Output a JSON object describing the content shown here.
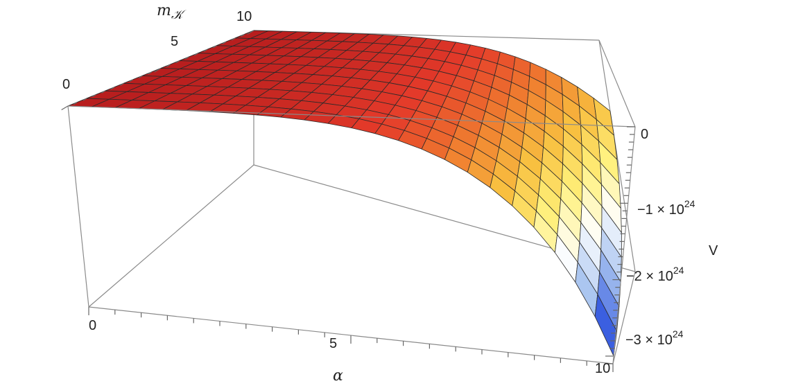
{
  "chart_data": {
    "type": "surface3d",
    "title": "",
    "xlabel": "α",
    "ylabel_main": "m",
    "ylabel_sub": "𝒦",
    "zlabel": "V",
    "xlim": [
      0,
      10
    ],
    "ylim": [
      0,
      10
    ],
    "zlim": [
      -3.1e+24,
      0
    ],
    "grid_resolution": {
      "x_lines": 24,
      "y_lines": 10
    },
    "x_ticks": [
      {
        "value": 0,
        "label": "0"
      },
      {
        "value": 5,
        "label": "5"
      },
      {
        "value": 10,
        "label": "10"
      }
    ],
    "y_ticks": [
      {
        "value": 0,
        "label": "0"
      },
      {
        "value": 5,
        "label": "5"
      },
      {
        "value": 10,
        "label": "10"
      }
    ],
    "z_ticks": [
      {
        "value": 0,
        "label": "0",
        "mant": "",
        "exp": ""
      },
      {
        "value": -1e+24,
        "label": "−1 × 10^24",
        "mant": "−1 × 10",
        "exp": "24"
      },
      {
        "value": -2e+24,
        "label": "−2 × 10^24",
        "mant": "−2 × 10",
        "exp": "24"
      },
      {
        "value": -3e+24,
        "label": "−3 × 10^24",
        "mant": "−3 × 10",
        "exp": "24"
      }
    ],
    "z_at_corners": {
      "alpha0_m0": 0,
      "alpha10_m0": -3e+24,
      "alpha10_m10": -9.5e+23,
      "alpha0_m10": 0
    },
    "colormap": [
      "#b81e1e",
      "#e43a2a",
      "#f08030",
      "#f8c040",
      "#fff07a",
      "#ffffff",
      "#a8c4f0",
      "#3b5fe0"
    ],
    "mesh": true,
    "box": true
  }
}
